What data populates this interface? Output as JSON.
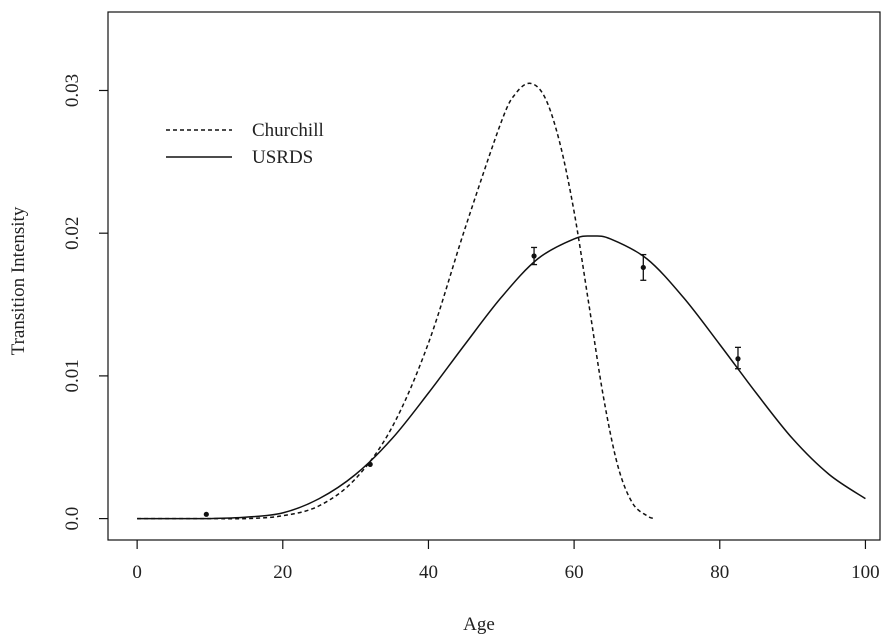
{
  "chart_data": {
    "type": "line",
    "title": "",
    "xlabel": "Age",
    "ylabel": "Transition Intensity",
    "xlim": [
      -4,
      102
    ],
    "ylim": [
      -0.0015,
      0.0355
    ],
    "xticks": [
      0,
      20,
      40,
      60,
      80,
      100
    ],
    "yticks": [
      0.0,
      0.01,
      0.02,
      0.03
    ],
    "xtick_labels": [
      "0",
      "20",
      "40",
      "60",
      "80",
      "100"
    ],
    "ytick_labels": [
      "0.0",
      "0.01",
      "0.02",
      "0.03"
    ],
    "grid": false,
    "legend": {
      "placement": "top-left"
    },
    "series": [
      {
        "name": "Churchill",
        "style": "dashed",
        "color": "#111111",
        "x": [
          0,
          5,
          10,
          15,
          20,
          25,
          30,
          35,
          40,
          45,
          50,
          52,
          54,
          56,
          58,
          60,
          62,
          64,
          66,
          68,
          70,
          71
        ],
        "y": [
          0.0,
          0.0,
          0.0,
          0.0,
          0.0002,
          0.0009,
          0.0028,
          0.0064,
          0.0123,
          0.0203,
          0.0278,
          0.0298,
          0.0305,
          0.0295,
          0.0264,
          0.0215,
          0.0151,
          0.0086,
          0.0037,
          0.0011,
          0.0002,
          0.0
        ]
      },
      {
        "name": "USRDS",
        "style": "solid",
        "color": "#111111",
        "x": [
          0,
          5,
          10,
          15,
          20,
          25,
          30,
          35,
          40,
          45,
          50,
          55,
          60,
          62.5,
          65,
          70,
          75,
          80,
          85,
          90,
          95,
          100
        ],
        "y": [
          0.0,
          0.0,
          0.0,
          0.0001,
          0.0004,
          0.0014,
          0.0031,
          0.0056,
          0.0088,
          0.0122,
          0.0155,
          0.0182,
          0.0196,
          0.0198,
          0.0196,
          0.0182,
          0.0155,
          0.0122,
          0.0088,
          0.0056,
          0.0031,
          0.0014
        ]
      }
    ],
    "points": [
      {
        "x": 9.5,
        "y": 0.0003,
        "err": [
          0.0003,
          0.0003
        ]
      },
      {
        "x": 32,
        "y": 0.0038,
        "err": [
          0.0038,
          0.0038
        ]
      },
      {
        "x": 54.5,
        "y": 0.0184,
        "err": [
          0.0178,
          0.019
        ]
      },
      {
        "x": 69.5,
        "y": 0.0176,
        "err": [
          0.0167,
          0.0185
        ]
      },
      {
        "x": 82.5,
        "y": 0.0112,
        "err": [
          0.0105,
          0.012
        ]
      }
    ]
  }
}
